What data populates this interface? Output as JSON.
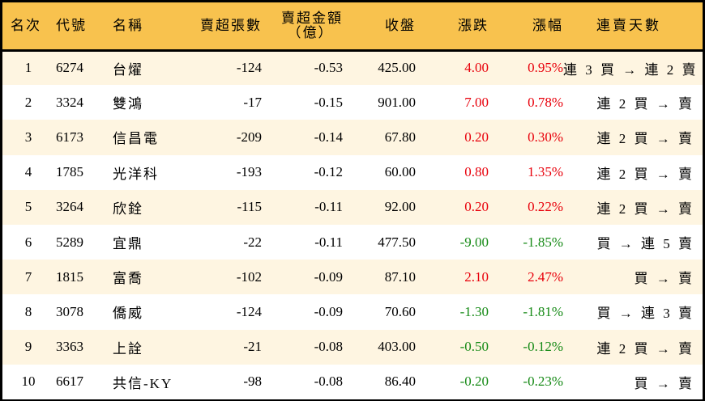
{
  "colors": {
    "header_bg": "#F8C24E",
    "row_odd_bg": "#FEF5E1",
    "row_even_bg": "#FFFFFF",
    "up": "#E8000B",
    "down": "#168A16",
    "border": "#000000"
  },
  "headers": {
    "rank": "名次",
    "code": "代號",
    "name": "名稱",
    "net_sell_lots": "賣超張數",
    "net_sell_amount_line1": "賣超金額",
    "net_sell_amount_line2": "（億）",
    "close": "收盤",
    "change": "漲跌",
    "change_pct": "漲幅",
    "streak": "連賣天數"
  },
  "rows": [
    {
      "rank": "1",
      "code": "6274",
      "name": "台燿",
      "lots": "-124",
      "amount": "-0.53",
      "close": "425.00",
      "change": "4.00",
      "pct": "0.95%",
      "dir": "up",
      "streak": "連 3 買 → 連 2 賣"
    },
    {
      "rank": "2",
      "code": "3324",
      "name": "雙鴻",
      "lots": "-17",
      "amount": "-0.15",
      "close": "901.00",
      "change": "7.00",
      "pct": "0.78%",
      "dir": "up",
      "streak": "連 2 買 → 賣"
    },
    {
      "rank": "3",
      "code": "6173",
      "name": "信昌電",
      "lots": "-209",
      "amount": "-0.14",
      "close": "67.80",
      "change": "0.20",
      "pct": "0.30%",
      "dir": "up",
      "streak": "連 2 買 → 賣"
    },
    {
      "rank": "4",
      "code": "1785",
      "name": "光洋科",
      "lots": "-193",
      "amount": "-0.12",
      "close": "60.00",
      "change": "0.80",
      "pct": "1.35%",
      "dir": "up",
      "streak": "連 2 買 → 賣"
    },
    {
      "rank": "5",
      "code": "3264",
      "name": "欣銓",
      "lots": "-115",
      "amount": "-0.11",
      "close": "92.00",
      "change": "0.20",
      "pct": "0.22%",
      "dir": "up",
      "streak": "連 2 買 → 賣"
    },
    {
      "rank": "6",
      "code": "5289",
      "name": "宜鼎",
      "lots": "-22",
      "amount": "-0.11",
      "close": "477.50",
      "change": "-9.00",
      "pct": "-1.85%",
      "dir": "down",
      "streak": "買 → 連 5 賣"
    },
    {
      "rank": "7",
      "code": "1815",
      "name": "富喬",
      "lots": "-102",
      "amount": "-0.09",
      "close": "87.10",
      "change": "2.10",
      "pct": "2.47%",
      "dir": "up",
      "streak": "買 → 賣"
    },
    {
      "rank": "8",
      "code": "3078",
      "name": "僑威",
      "lots": "-124",
      "amount": "-0.09",
      "close": "70.60",
      "change": "-1.30",
      "pct": "-1.81%",
      "dir": "down",
      "streak": "買 → 連 3 賣"
    },
    {
      "rank": "9",
      "code": "3363",
      "name": "上詮",
      "lots": "-21",
      "amount": "-0.08",
      "close": "403.00",
      "change": "-0.50",
      "pct": "-0.12%",
      "dir": "down",
      "streak": "連 2 買 → 賣"
    },
    {
      "rank": "10",
      "code": "6617",
      "name": "共信-KY",
      "lots": "-98",
      "amount": "-0.08",
      "close": "86.40",
      "change": "-0.20",
      "pct": "-0.23%",
      "dir": "down",
      "streak": "買 → 賣"
    }
  ]
}
